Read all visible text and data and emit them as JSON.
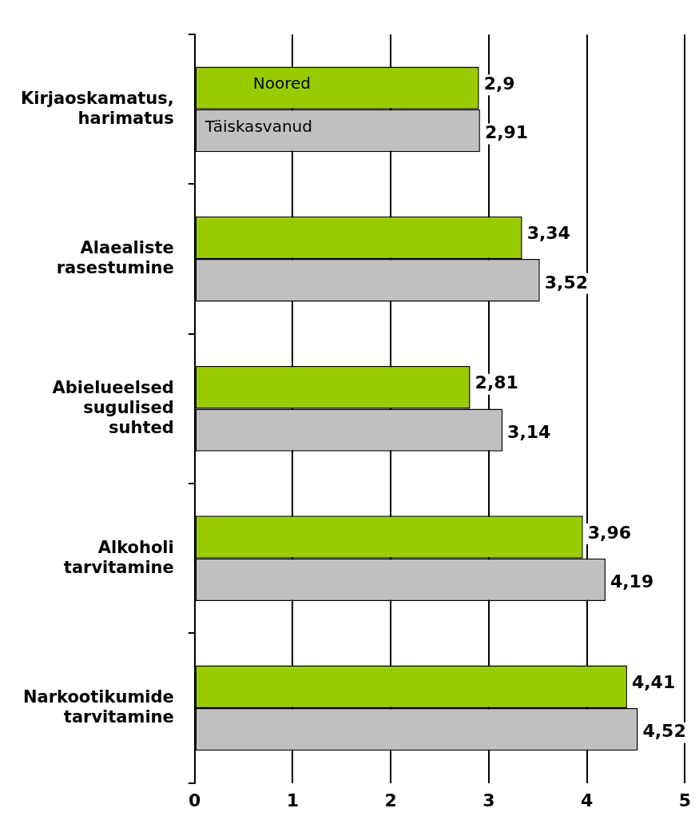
{
  "chart_data": {
    "type": "bar",
    "orientation": "horizontal",
    "categories": [
      "Kirjaoskamatus, harimatus",
      "Alaealiste rasestumine",
      "Abielueelsed sugulised suhted",
      "Alkoholi tarvitamine",
      "Narkootikumide tarvitamine"
    ],
    "series": [
      {
        "name": "Noored",
        "color": "#99cc00",
        "values": [
          2.9,
          3.34,
          2.81,
          3.96,
          4.41
        ],
        "value_labels": [
          "2,9",
          "3,34",
          "2,81",
          "3,96",
          "4,41"
        ]
      },
      {
        "name": "Täiskasvanud",
        "color": "#c0c0c0",
        "values": [
          2.91,
          3.52,
          3.14,
          4.19,
          4.52
        ],
        "value_labels": [
          "2,91",
          "3,52",
          "3,14",
          "4,19",
          "4,52"
        ]
      }
    ],
    "xlim": [
      0,
      5
    ],
    "xticks": [
      0,
      1,
      2,
      3,
      4,
      5
    ],
    "grid": "x",
    "legend": false
  }
}
